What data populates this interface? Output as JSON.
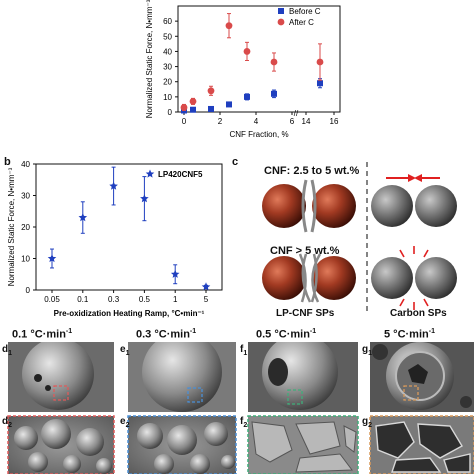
{
  "panel_labels": {
    "b": "b",
    "c": "c",
    "d1": "d",
    "e1": "e",
    "f1": "f",
    "g1": "g",
    "d2": "d",
    "e2": "e",
    "f2": "f",
    "g2": "g"
  },
  "panel_subs": {
    "d1": "1",
    "e1": "1",
    "f1": "1",
    "g1": "1",
    "d2": "2",
    "e2": "2",
    "f2": "2",
    "g2": "2"
  },
  "schematic": {
    "row1_label": "CNF:  2.5 to 5 wt.%",
    "row2_label": "CNF > 5 wt.%",
    "left_caption": "LP-CNF SPs",
    "right_caption": "Carbon SPs"
  },
  "micrographs": {
    "labels": [
      "0.1 °C·min",
      "0.3 °C·min",
      "0.5 °C·min",
      "5 °C·min"
    ],
    "label_exponent": "-1",
    "roi_colors": [
      "#e05a5a",
      "#4a8fd6",
      "#3fae7a",
      "#d99a5a"
    ]
  },
  "chart_data": [
    {
      "type": "scatter",
      "xlabel": "CNF Fraction, %",
      "ylabel": "Normalized Static Force, N•mm⁻³",
      "ylim": [
        0,
        70
      ],
      "yticks": [
        0,
        10,
        20,
        30,
        40,
        50,
        60
      ],
      "xticks": [
        "0",
        "2",
        "4",
        "6",
        "14",
        "16"
      ],
      "broken_x_axis": true,
      "legend_position": "top-right",
      "series": [
        {
          "name": "Before C",
          "marker": "square",
          "color": "#1f3fbf",
          "points": [
            [
              0,
              1
            ],
            [
              0.5,
              1.5
            ],
            [
              1.5,
              2
            ],
            [
              2.5,
              5
            ],
            [
              3.5,
              10
            ],
            [
              5,
              12
            ],
            [
              15,
              19
            ]
          ],
          "err": [
            0.5,
            0.5,
            0.5,
            1,
            2,
            2.5,
            3
          ]
        },
        {
          "name": "After C",
          "marker": "circle",
          "color": "#d94a4a",
          "points": [
            [
              0,
              3
            ],
            [
              0.5,
              7
            ],
            [
              1.5,
              14
            ],
            [
              2.5,
              57
            ],
            [
              3.5,
              40
            ],
            [
              5,
              33
            ],
            [
              15,
              33
            ]
          ],
          "err": [
            2,
            2,
            3,
            8,
            6,
            6,
            12
          ]
        }
      ]
    },
    {
      "type": "scatter",
      "xlabel": "Pre-oxidization Heating Ramp, °C•min⁻¹",
      "ylabel": "Normalized Static Force, N•mm⁻³",
      "ylim": [
        0,
        40
      ],
      "yticks": [
        0,
        10,
        20,
        30,
        40
      ],
      "categories": [
        "0.05",
        "0.1",
        "0.3",
        "0.5",
        "1",
        "5"
      ],
      "legend_position": "top-right",
      "series": [
        {
          "name": "LP420CNF5",
          "marker": "star",
          "color": "#1f3fbf",
          "values": [
            10,
            23,
            33,
            29,
            5,
            1
          ],
          "err": [
            3,
            5,
            6,
            7,
            3,
            0.5
          ]
        }
      ]
    }
  ]
}
